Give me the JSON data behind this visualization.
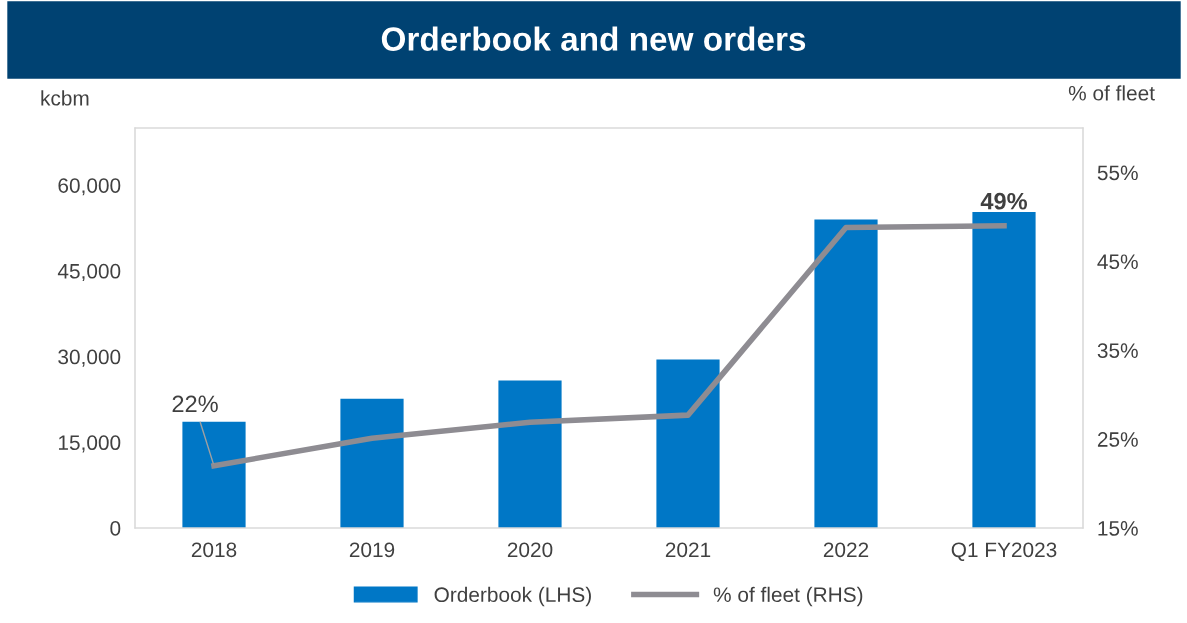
{
  "chart_data": {
    "type": "bar",
    "title": "Orderbook and new orders",
    "ylabel": "kcbm",
    "y2label": "% of fleet",
    "categories": [
      "2018",
      "2019",
      "2020",
      "2021",
      "2022",
      "Q1 FY2023"
    ],
    "series": [
      {
        "name": "Orderbook (LHS)",
        "color": "#0077c6",
        "values": [
          18600,
          22600,
          25800,
          29500,
          54000,
          55300
        ]
      },
      {
        "name": "% of fleet (RHS)",
        "type": "line",
        "axis": "y2",
        "color": "#8e8c92",
        "values": [
          22,
          25.1,
          26.9,
          27.7,
          48.8,
          49
        ],
        "value_labels": [
          "22%",
          null,
          null,
          null,
          null,
          "49%"
        ]
      }
    ],
    "ylim": [
      0,
      70000
    ],
    "yticks": [
      {
        "value": 0,
        "label": "0"
      },
      {
        "value": 15000,
        "label": "15,000"
      },
      {
        "value": 30000,
        "label": "30,000"
      },
      {
        "value": 45000,
        "label": "45,000"
      },
      {
        "value": 60000,
        "label": "60,000"
      }
    ],
    "y2lim": [
      15,
      60
    ],
    "y2ticks": [
      {
        "value": 15,
        "label": "15%"
      },
      {
        "value": 25,
        "label": "25%"
      },
      {
        "value": 35,
        "label": "35%"
      },
      {
        "value": 45,
        "label": "45%"
      },
      {
        "value": 55,
        "label": "55%"
      }
    ],
    "grid": false,
    "legend": "bottom",
    "line_style": "solid",
    "marker": "none"
  }
}
